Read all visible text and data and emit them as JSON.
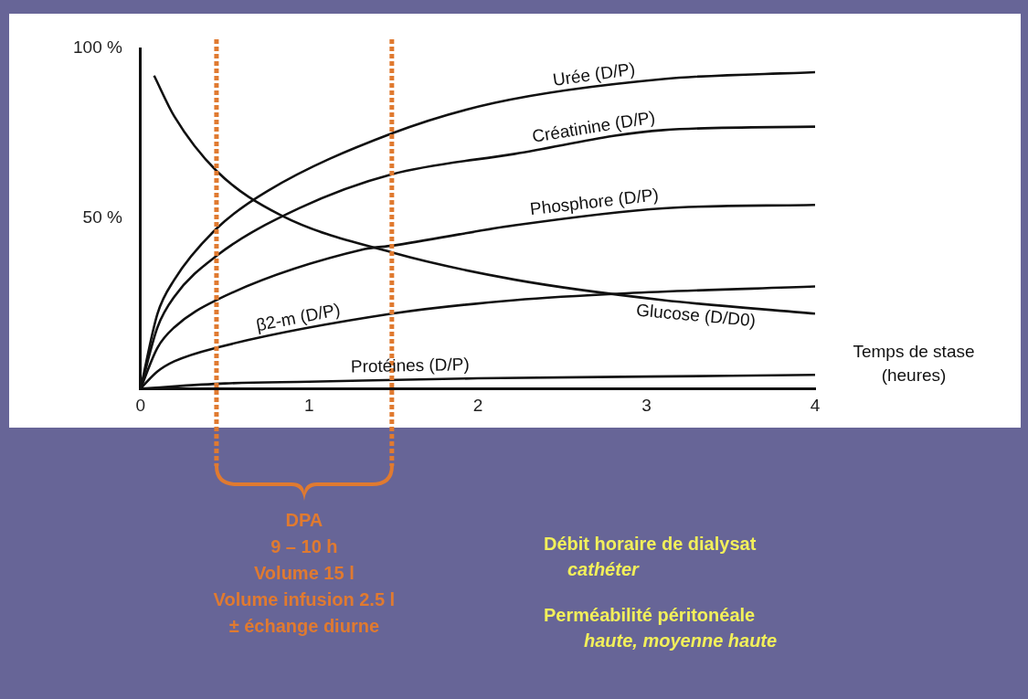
{
  "chart_data": {
    "type": "line",
    "xlabel": "Temps de stase (heures)",
    "xlim": [
      0,
      4
    ],
    "xticks": [
      0,
      1,
      2,
      3,
      4
    ],
    "ylim": [
      0,
      100
    ],
    "yticks": [
      {
        "value": 50,
        "label": "50 %"
      },
      {
        "value": 100,
        "label": "100 %"
      }
    ],
    "legend": false,
    "marker": "none",
    "line_style": "solid",
    "series": [
      {
        "name": "Urée (D/P)",
        "color": "#111111",
        "x": [
          0,
          0.1,
          0.2,
          0.45,
          0.75,
          1.49,
          2.1,
          3.1,
          4
        ],
        "values": [
          0,
          22,
          32,
          47,
          58,
          75,
          84,
          91,
          93
        ]
      },
      {
        "name": "Créatinine (D/P)",
        "color": "#111111",
        "x": [
          0,
          0.1,
          0.2,
          0.45,
          0.94,
          1.49,
          2.22,
          3.1,
          4
        ],
        "values": [
          0,
          18,
          27,
          39,
          53,
          63,
          69,
          76,
          77
        ]
      },
      {
        "name": "Phosphore (D/P)",
        "color": "#111111",
        "x": [
          0,
          0.1,
          0.2,
          0.45,
          1.33,
          1.49,
          2.22,
          3.1,
          4
        ],
        "values": [
          0,
          12,
          18,
          26,
          41,
          42,
          48,
          53,
          54
        ]
      },
      {
        "name": "Glucose (D/D0)",
        "color": "#111111",
        "x": [
          0.08,
          0.2,
          0.45,
          0.83,
          1.49,
          2.22,
          3.1,
          4
        ],
        "values": [
          92,
          80,
          64,
          51,
          40,
          32,
          26,
          22
        ]
      },
      {
        "name": "β2-m (D/P)",
        "color": "#111111",
        "x": [
          0,
          0.1,
          0.2,
          0.45,
          1.49,
          2.22,
          2.88,
          4
        ],
        "values": [
          0,
          5,
          8,
          12,
          22,
          26,
          28,
          30
        ]
      },
      {
        "name": "Protéines (D/P)",
        "color": "#111111",
        "x": [
          0,
          0.5,
          1,
          2,
          3,
          4
        ],
        "values": [
          0,
          1.5,
          2,
          3,
          3.5,
          4
        ]
      }
    ],
    "ref_lines": [
      {
        "axis": "x",
        "value": 0.45,
        "color": "#e07a30",
        "line_style": "dotted"
      },
      {
        "axis": "x",
        "value": 1.49,
        "color": "#e07a30",
        "line_style": "dotted"
      }
    ],
    "annotations": [
      "DPA",
      "9 – 10 h",
      "Volume 15 l",
      "Volume infusion 2.5 l",
      "± échange diurne",
      "Débit horaire de dialysat",
      "cathéter",
      "Perméabilité péritonéale",
      "haute, moyenne haute"
    ]
  }
}
